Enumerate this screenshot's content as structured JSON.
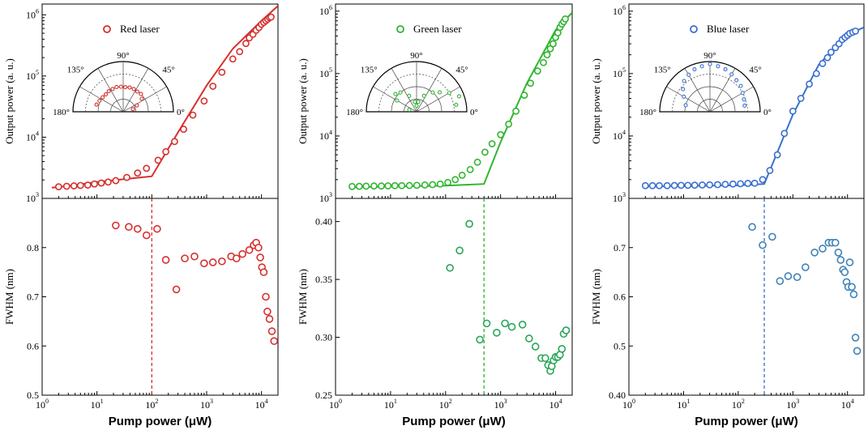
{
  "chart_data": [
    {
      "type": "scatter",
      "panel": "red",
      "color": "#d62f2f",
      "scatter_color": "#d62f2f",
      "legend": "Red laser",
      "legend_placement": "top-left",
      "ylabel": "Output power (a. u.)",
      "yscale": "log",
      "ylim": [
        1000,
        1500000
      ],
      "yticks": [
        {
          "v": 1000,
          "b": "10",
          "e": "3"
        },
        {
          "v": 10000,
          "b": "10",
          "e": "4"
        },
        {
          "v": 100000,
          "b": "10",
          "e": "5"
        },
        {
          "v": 1000000,
          "b": "10",
          "e": "6"
        }
      ],
      "points": [
        [
          2,
          1550
        ],
        [
          2.8,
          1580
        ],
        [
          3.8,
          1600
        ],
        [
          5,
          1630
        ],
        [
          6.8,
          1650
        ],
        [
          9,
          1720
        ],
        [
          12,
          1780
        ],
        [
          16,
          1850
        ],
        [
          22,
          1950
        ],
        [
          35,
          2200
        ],
        [
          55,
          2600
        ],
        [
          80,
          3100
        ],
        [
          130,
          4200
        ],
        [
          180,
          5800
        ],
        [
          260,
          8500
        ],
        [
          380,
          13500
        ],
        [
          560,
          23000
        ],
        [
          900,
          39000
        ],
        [
          1300,
          68000
        ],
        [
          1900,
          115000
        ],
        [
          3000,
          190000
        ],
        [
          4000,
          250000
        ],
        [
          5200,
          340000
        ],
        [
          6000,
          420000
        ],
        [
          7000,
          480000
        ],
        [
          8000,
          560000
        ],
        [
          9000,
          620000
        ],
        [
          10000,
          700000
        ],
        [
          11000,
          750000
        ],
        [
          12000,
          800000
        ],
        [
          13000,
          850000
        ],
        [
          14000,
          900000
        ],
        [
          15000,
          920000
        ]
      ],
      "fit": [
        [
          1.5,
          1500
        ],
        [
          3,
          1600
        ],
        [
          10,
          1850
        ],
        [
          30,
          2050
        ],
        [
          100,
          2300
        ],
        [
          300,
          12000
        ],
        [
          1000,
          70000
        ],
        [
          3000,
          280000
        ],
        [
          10000,
          800000
        ],
        [
          20000,
          1400000
        ]
      ],
      "fwhm_ylabel": "FWHM (nm)",
      "fwhm_ylim": [
        0.5,
        0.9
      ],
      "fwhm_yticks": [
        0.5,
        0.6,
        0.7,
        0.8
      ],
      "fwhm_points": [
        [
          22,
          0.845
        ],
        [
          38,
          0.842
        ],
        [
          55,
          0.838
        ],
        [
          80,
          0.825
        ],
        [
          125,
          0.838
        ],
        [
          180,
          0.775
        ],
        [
          280,
          0.715
        ],
        [
          400,
          0.778
        ],
        [
          600,
          0.782
        ],
        [
          900,
          0.768
        ],
        [
          1300,
          0.77
        ],
        [
          1900,
          0.772
        ],
        [
          2800,
          0.782
        ],
        [
          3500,
          0.778
        ],
        [
          4500,
          0.787
        ],
        [
          6000,
          0.795
        ],
        [
          7200,
          0.805
        ],
        [
          8000,
          0.81
        ],
        [
          8800,
          0.8
        ],
        [
          9500,
          0.78
        ],
        [
          10200,
          0.76
        ],
        [
          11000,
          0.75
        ],
        [
          12000,
          0.7
        ],
        [
          12800,
          0.67
        ],
        [
          14000,
          0.655
        ],
        [
          15500,
          0.63
        ],
        [
          17000,
          0.61
        ]
      ],
      "threshold": 100,
      "xlabel": "Pump power (μW)",
      "xscale": "log",
      "xlim": [
        1,
        20000
      ],
      "xticks": [
        {
          "v": 1,
          "b": "10",
          "e": "0"
        },
        {
          "v": 10,
          "b": "10",
          "e": "1"
        },
        {
          "v": 100,
          "b": "10",
          "e": "2"
        },
        {
          "v": 1000,
          "b": "10",
          "e": "3"
        },
        {
          "v": 10000,
          "b": "10",
          "e": "4"
        }
      ],
      "polar": {
        "labels": [
          "90°",
          "45°",
          "0°",
          "135°",
          "180°"
        ],
        "points": [
          [
            165,
            0.55
          ],
          [
            155,
            0.52
          ],
          [
            145,
            0.5
          ],
          [
            135,
            0.49
          ],
          [
            125,
            0.5
          ],
          [
            115,
            0.5
          ],
          [
            105,
            0.51
          ],
          [
            95,
            0.5
          ],
          [
            85,
            0.49
          ],
          [
            75,
            0.5
          ],
          [
            65,
            0.5
          ],
          [
            55,
            0.49
          ],
          [
            45,
            0.5
          ],
          [
            35,
            0.45
          ],
          [
            25,
            0.3
          ],
          [
            15,
            0.2
          ]
        ]
      }
    },
    {
      "type": "scatter",
      "panel": "green",
      "color": "#2fb52f",
      "scatter_color": "#2aa55a",
      "legend": "Green laser",
      "legend_placement": "top-left",
      "ylabel": "Output power (a. u.)",
      "yscale": "log",
      "ylim": [
        1000,
        1300000
      ],
      "yticks": [
        {
          "v": 1000,
          "b": "10",
          "e": "3"
        },
        {
          "v": 10000,
          "b": "10",
          "e": "4"
        },
        {
          "v": 100000,
          "b": "10",
          "e": "5"
        },
        {
          "v": 1000000,
          "b": "10",
          "e": "6"
        }
      ],
      "points": [
        [
          2,
          1550
        ],
        [
          2.7,
          1560
        ],
        [
          3.6,
          1570
        ],
        [
          5,
          1580
        ],
        [
          6.8,
          1580
        ],
        [
          9,
          1590
        ],
        [
          12,
          1600
        ],
        [
          16,
          1600
        ],
        [
          22,
          1610
        ],
        [
          30,
          1620
        ],
        [
          42,
          1640
        ],
        [
          58,
          1660
        ],
        [
          80,
          1700
        ],
        [
          110,
          1800
        ],
        [
          150,
          2000
        ],
        [
          200,
          2350
        ],
        [
          280,
          2900
        ],
        [
          380,
          3800
        ],
        [
          520,
          5500
        ],
        [
          700,
          7500
        ],
        [
          1000,
          10500
        ],
        [
          1400,
          15500
        ],
        [
          1900,
          25000
        ],
        [
          2700,
          45000
        ],
        [
          3500,
          70000
        ],
        [
          4700,
          110000
        ],
        [
          6000,
          150000
        ],
        [
          7000,
          200000
        ],
        [
          8000,
          250000
        ],
        [
          9000,
          300000
        ],
        [
          10000,
          380000
        ],
        [
          11000,
          450000
        ],
        [
          12000,
          550000
        ],
        [
          13000,
          620000
        ],
        [
          14000,
          680000
        ],
        [
          15000,
          750000
        ]
      ],
      "fit": [
        [
          2,
          1500
        ],
        [
          10,
          1550
        ],
        [
          100,
          1600
        ],
        [
          500,
          1700
        ],
        [
          1000,
          8000
        ],
        [
          3000,
          70000
        ],
        [
          10000,
          500000
        ],
        [
          20000,
          950000
        ]
      ],
      "fwhm_ylabel": "FWHM (nm)",
      "fwhm_ylim": [
        0.25,
        0.42
      ],
      "fwhm_yticks": [
        0.25,
        0.3,
        0.35,
        0.4
      ],
      "fwhm_points": [
        [
          120,
          0.36
        ],
        [
          180,
          0.375
        ],
        [
          270,
          0.398
        ],
        [
          420,
          0.298
        ],
        [
          560,
          0.312
        ],
        [
          850,
          0.304
        ],
        [
          1200,
          0.312
        ],
        [
          1600,
          0.309
        ],
        [
          2500,
          0.311
        ],
        [
          3300,
          0.299
        ],
        [
          4300,
          0.292
        ],
        [
          5500,
          0.282
        ],
        [
          6500,
          0.282
        ],
        [
          7300,
          0.276
        ],
        [
          8000,
          0.271
        ],
        [
          8500,
          0.275
        ],
        [
          9200,
          0.28
        ],
        [
          10000,
          0.283
        ],
        [
          11000,
          0.283
        ],
        [
          12000,
          0.285
        ],
        [
          13000,
          0.29
        ],
        [
          14000,
          0.303
        ],
        [
          15500,
          0.306
        ]
      ],
      "threshold": 500,
      "xlabel": "Pump power (μW)",
      "xscale": "log",
      "xlim": [
        1,
        20000
      ],
      "xticks": [
        {
          "v": 1,
          "b": "10",
          "e": "0"
        },
        {
          "v": 10,
          "b": "10",
          "e": "1"
        },
        {
          "v": 100,
          "b": "10",
          "e": "2"
        },
        {
          "v": 1000,
          "b": "10",
          "e": "3"
        },
        {
          "v": 10000,
          "b": "10",
          "e": "4"
        }
      ],
      "polar": {
        "labels": [
          "90°",
          "45°",
          "0°",
          "135°",
          "180°"
        ],
        "points": [
          [
            165,
            0.15
          ],
          [
            150,
            0.45
          ],
          [
            140,
            0.55
          ],
          [
            130,
            0.5
          ],
          [
            115,
            0.35
          ],
          [
            100,
            0.2
          ],
          [
            90,
            0.12
          ],
          [
            80,
            0.2
          ],
          [
            65,
            0.35
          ],
          [
            50,
            0.5
          ],
          [
            40,
            0.6
          ],
          [
            30,
            0.75
          ],
          [
            20,
            0.9
          ],
          [
            10,
            0.8
          ]
        ]
      }
    },
    {
      "type": "scatter",
      "panel": "blue",
      "color": "#3a6fcf",
      "scatter_color": "#3f82b7",
      "legend": "Blue laser",
      "legend_placement": "top-left",
      "ylabel": "Output power (a. u.)",
      "yscale": "log",
      "ylim": [
        1000,
        1300000
      ],
      "yticks": [
        {
          "v": 1000,
          "b": "10",
          "e": "3"
        },
        {
          "v": 10000,
          "b": "10",
          "e": "4"
        },
        {
          "v": 100000,
          "b": "10",
          "e": "5"
        },
        {
          "v": 1000000,
          "b": "10",
          "e": "6"
        }
      ],
      "points": [
        [
          2,
          1600
        ],
        [
          2.7,
          1600
        ],
        [
          3.6,
          1600
        ],
        [
          5,
          1600
        ],
        [
          6.8,
          1610
        ],
        [
          9,
          1620
        ],
        [
          12,
          1620
        ],
        [
          16,
          1630
        ],
        [
          22,
          1640
        ],
        [
          30,
          1650
        ],
        [
          42,
          1660
        ],
        [
          58,
          1680
        ],
        [
          80,
          1700
        ],
        [
          110,
          1720
        ],
        [
          150,
          1740
        ],
        [
          200,
          1750
        ],
        [
          280,
          2000
        ],
        [
          380,
          2800
        ],
        [
          520,
          5000
        ],
        [
          700,
          11000
        ],
        [
          1000,
          25000
        ],
        [
          1400,
          40000
        ],
        [
          2000,
          68000
        ],
        [
          2700,
          100000
        ],
        [
          3500,
          145000
        ],
        [
          4300,
          180000
        ],
        [
          5000,
          220000
        ],
        [
          6000,
          260000
        ],
        [
          7000,
          300000
        ],
        [
          8000,
          350000
        ],
        [
          9000,
          380000
        ],
        [
          10000,
          410000
        ],
        [
          11000,
          440000
        ],
        [
          12500,
          460000
        ],
        [
          14000,
          480000
        ]
      ],
      "fit": [
        [
          2,
          1550
        ],
        [
          10,
          1580
        ],
        [
          100,
          1620
        ],
        [
          300,
          1700
        ],
        [
          1000,
          22000
        ],
        [
          3000,
          140000
        ],
        [
          10000,
          420000
        ],
        [
          20000,
          550000
        ]
      ],
      "fwhm_ylabel": "FWHM (nm)",
      "fwhm_ylim": [
        0.4,
        0.8
      ],
      "fwhm_yticks": [
        0.4,
        0.5,
        0.6,
        0.7
      ],
      "fwhm_points": [
        [
          180,
          0.742
        ],
        [
          280,
          0.705
        ],
        [
          420,
          0.722
        ],
        [
          580,
          0.632
        ],
        [
          820,
          0.642
        ],
        [
          1200,
          0.64
        ],
        [
          1700,
          0.66
        ],
        [
          2500,
          0.69
        ],
        [
          3500,
          0.698
        ],
        [
          4500,
          0.71
        ],
        [
          5200,
          0.71
        ],
        [
          6000,
          0.71
        ],
        [
          6800,
          0.69
        ],
        [
          7500,
          0.675
        ],
        [
          8300,
          0.655
        ],
        [
          8900,
          0.65
        ],
        [
          9600,
          0.63
        ],
        [
          10300,
          0.62
        ],
        [
          11000,
          0.67
        ],
        [
          12000,
          0.62
        ],
        [
          13000,
          0.605
        ],
        [
          14000,
          0.517
        ],
        [
          15000,
          0.49
        ]
      ],
      "threshold": 300,
      "xlabel": "Pump power (μW)",
      "xscale": "log",
      "xlim": [
        1,
        20000
      ],
      "xticks": [
        {
          "v": 1,
          "b": "10",
          "e": "0"
        },
        {
          "v": 10,
          "b": "10",
          "e": "1"
        },
        {
          "v": 100,
          "b": "10",
          "e": "2"
        },
        {
          "v": 1000,
          "b": "10",
          "e": "3"
        },
        {
          "v": 10000,
          "b": "10",
          "e": "4"
        }
      ],
      "polar": {
        "labels": [
          "90°",
          "45°",
          "0°",
          "135°",
          "180°"
        ],
        "points": [
          [
            165,
            0.5
          ],
          [
            150,
            0.6
          ],
          [
            140,
            0.7
          ],
          [
            130,
            0.8
          ],
          [
            120,
            0.85
          ],
          [
            110,
            0.9
          ],
          [
            100,
            0.92
          ],
          [
            90,
            0.95
          ],
          [
            80,
            0.92
          ],
          [
            70,
            0.9
          ],
          [
            60,
            0.86
          ],
          [
            50,
            0.82
          ],
          [
            40,
            0.8
          ],
          [
            30,
            0.75
          ],
          [
            20,
            0.72
          ],
          [
            10,
            0.7
          ]
        ]
      }
    }
  ]
}
